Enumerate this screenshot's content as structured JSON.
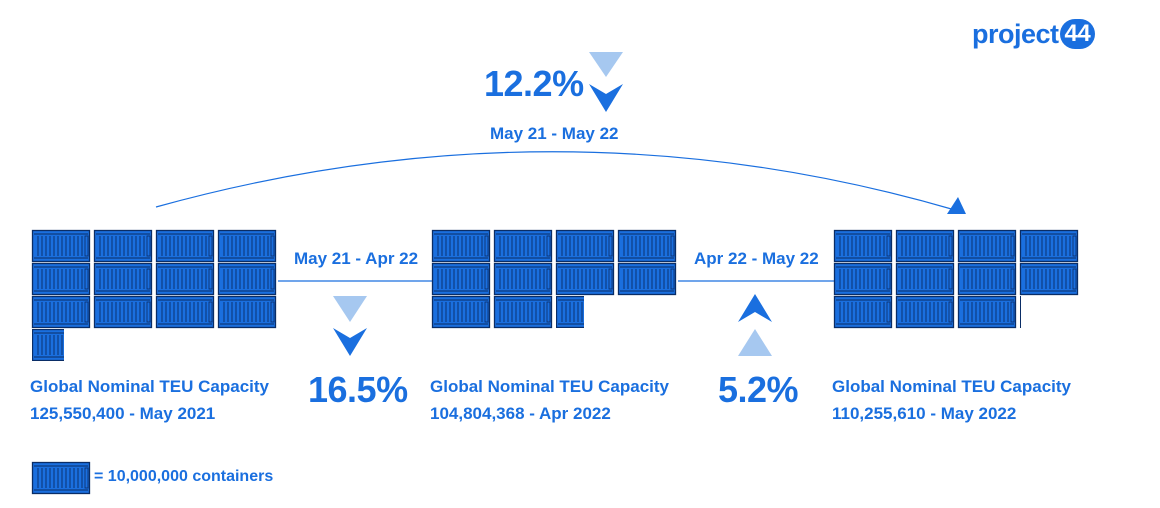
{
  "brand": {
    "name": "project",
    "number": "44"
  },
  "colors": {
    "accent": "#1a6fdf",
    "container_fill": "#1a6fdf",
    "container_stroke": "#0a2d66",
    "arrow_light": "#a6c8f0"
  },
  "overall_change": {
    "percent": "12.2%",
    "period": "May 21 - May 22",
    "direction": "down"
  },
  "changes": [
    {
      "period": "May 21 - Apr 22",
      "percent": "16.5%",
      "direction": "down"
    },
    {
      "period": "Apr 22 - May 22",
      "percent": "5.2%",
      "direction": "up"
    }
  ],
  "snapshots": [
    {
      "label": "Global Nominal TEU Capacity",
      "value": "125,550,400 - May 2021",
      "containers": 12.555
    },
    {
      "label": "Global Nominal TEU Capacity",
      "value": "104,804,368 - Apr 2022",
      "containers": 10.4804
    },
    {
      "label": "Global Nominal TEU Capacity",
      "value": "110,255,610 - May 2022",
      "containers": 11.0256
    }
  ],
  "legend": {
    "icon": "shipping-container-icon",
    "text": "= 10,000,000 containers"
  }
}
